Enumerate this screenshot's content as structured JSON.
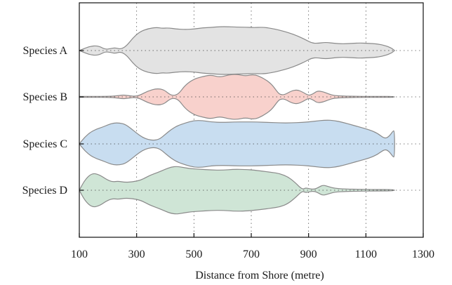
{
  "chart_data": {
    "type": "violin",
    "title": "",
    "xlabel": "Distance from Shore (metre)",
    "ylabel": "",
    "xlim": [
      100,
      1300
    ],
    "xticks": [
      100,
      300,
      500,
      700,
      900,
      1100,
      1300
    ],
    "xtick_labels": [
      "100",
      "300",
      "500",
      "700",
      "900",
      "1100",
      "1300"
    ],
    "grid": "dotted",
    "categories": [
      "Species A",
      "Species B",
      "Species C",
      "Species D"
    ],
    "series": [
      {
        "name": "Species A",
        "color": "#e3e3e3",
        "x": [
          100,
          120,
          140,
          160,
          175,
          190,
          210,
          225,
          245,
          265,
          285,
          310,
          340,
          370,
          390,
          410,
          440,
          470,
          500,
          530,
          560,
          590,
          620,
          650,
          680,
          710,
          740,
          770,
          800,
          830,
          860,
          890,
          910,
          930,
          960,
          990,
          1020,
          1050,
          1080,
          1110,
          1140,
          1170,
          1190,
          1200
        ],
        "halfwidth": [
          0.0,
          0.1,
          0.18,
          0.2,
          0.15,
          0.05,
          0.08,
          0.12,
          0.05,
          0.2,
          0.5,
          0.78,
          0.92,
          0.97,
          0.93,
          0.95,
          0.9,
          0.88,
          0.9,
          0.95,
          0.97,
          1.0,
          1.0,
          0.98,
          0.98,
          0.96,
          0.98,
          0.93,
          0.85,
          0.75,
          0.62,
          0.45,
          0.32,
          0.3,
          0.35,
          0.3,
          0.28,
          0.3,
          0.32,
          0.3,
          0.28,
          0.2,
          0.1,
          0.0
        ]
      },
      {
        "name": "Species B",
        "color": "#f8d1cc",
        "x": [
          100,
          150,
          200,
          230,
          250,
          270,
          290,
          310,
          340,
          370,
          395,
          410,
          425,
          445,
          470,
          500,
          530,
          560,
          590,
          620,
          650,
          680,
          710,
          740,
          770,
          790,
          800,
          815,
          840,
          860,
          880,
          900,
          915,
          930,
          950,
          970,
          990,
          1030,
          1080,
          1150,
          1200
        ],
        "halfwidth": [
          0.02,
          0.02,
          0.02,
          0.04,
          0.08,
          0.06,
          0.02,
          0.06,
          0.25,
          0.35,
          0.3,
          0.15,
          0.05,
          0.1,
          0.5,
          0.75,
          0.85,
          0.92,
          0.82,
          0.92,
          0.95,
          0.87,
          0.95,
          0.8,
          0.55,
          0.22,
          0.1,
          0.08,
          0.25,
          0.3,
          0.2,
          0.05,
          0.12,
          0.25,
          0.22,
          0.12,
          0.05,
          0.03,
          0.02,
          0.02,
          0.02
        ]
      },
      {
        "name": "Species C",
        "color": "#c8ddf0",
        "x": [
          100,
          120,
          140,
          160,
          180,
          200,
          220,
          240,
          260,
          280,
          300,
          320,
          340,
          360,
          380,
          400,
          420,
          440,
          470,
          500,
          530,
          560,
          600,
          640,
          680,
          720,
          760,
          800,
          840,
          880,
          920,
          960,
          990,
          1020,
          1050,
          1080,
          1110,
          1140,
          1165,
          1180,
          1195,
          1200
        ],
        "halfwidth": [
          0.0,
          0.3,
          0.5,
          0.62,
          0.7,
          0.8,
          0.88,
          0.88,
          0.82,
          0.65,
          0.45,
          0.28,
          0.18,
          0.15,
          0.2,
          0.4,
          0.6,
          0.75,
          0.88,
          0.98,
          0.98,
          0.92,
          0.9,
          0.92,
          0.92,
          0.92,
          0.9,
          0.88,
          0.88,
          0.9,
          0.95,
          1.0,
          0.98,
          0.9,
          0.8,
          0.7,
          0.6,
          0.45,
          0.22,
          0.3,
          0.55,
          0.55
        ]
      },
      {
        "name": "Species D",
        "color": "#cfe5d6",
        "x": [
          100,
          120,
          145,
          170,
          195,
          215,
          235,
          260,
          285,
          315,
          345,
          375,
          400,
          420,
          440,
          460,
          490,
          520,
          560,
          600,
          640,
          680,
          710,
          740,
          770,
          800,
          830,
          855,
          870,
          880,
          890,
          905,
          920,
          935,
          950,
          970,
          990,
          1030,
          1080,
          1130,
          1200
        ],
        "halfwidth": [
          0.0,
          0.45,
          0.72,
          0.65,
          0.45,
          0.35,
          0.38,
          0.33,
          0.35,
          0.42,
          0.62,
          0.75,
          0.88,
          0.97,
          1.0,
          0.96,
          0.9,
          0.88,
          0.85,
          0.84,
          0.88,
          0.87,
          0.84,
          0.8,
          0.75,
          0.7,
          0.55,
          0.3,
          0.12,
          0.04,
          0.1,
          0.06,
          0.04,
          0.12,
          0.22,
          0.15,
          0.08,
          0.05,
          0.04,
          0.03,
          0.03
        ]
      }
    ]
  }
}
